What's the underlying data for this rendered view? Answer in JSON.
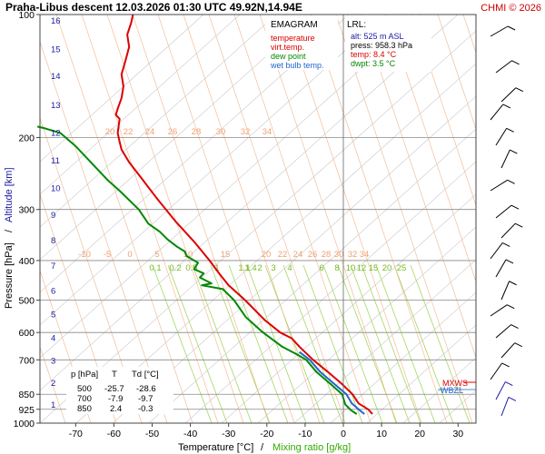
{
  "header": {
    "title": "Praha-Libus   descent   12.03.2026 01:30 UTC  49.92N,14.94E",
    "copyright": "CHMI © 2026"
  },
  "legend": {
    "title": "EMAGRAM",
    "items": [
      {
        "label": "temperature",
        "color": "#dd0000"
      },
      {
        "label": "virt.temp.",
        "color": "#dd0000"
      },
      {
        "label": "dew point",
        "color": "#008800"
      },
      {
        "label": "wet bulb temp.",
        "color": "#2266cc"
      }
    ]
  },
  "lrl": {
    "title": "LRL:",
    "alt": "alt: 525 m ASL",
    "press": "press: 958.3 hPa",
    "temp": "temp: 8.4 °C",
    "dwpt": "dwpt: 3.5 °C"
  },
  "summary_table": {
    "headers": [
      "p [hPa]",
      "T",
      "Td [°C]"
    ],
    "rows": [
      [
        "500",
        "-25.7",
        "-28.6"
      ],
      [
        "700",
        "-7.9",
        "-9.7"
      ],
      [
        "850",
        "2.4",
        "-0.3"
      ]
    ]
  },
  "markers": {
    "mxws": {
      "label": "MXWS",
      "color": "#dd0000"
    },
    "wbzl": {
      "label": "WBZL",
      "color": "#2266cc"
    }
  },
  "chart_data": {
    "type": "line",
    "title": "Praha-Libus   descent   12.03.2026 01:30 UTC  49.92N,14.94E",
    "xlabel": "Temperature [°C]",
    "xlabel2": "Mixing ratio [g/kg]",
    "ylabel": "Pressure [hPa]",
    "ylabel2": "Altitude [km]",
    "xlim": [
      -80,
      40
    ],
    "ylim": [
      1000,
      100
    ],
    "y_scale": "log",
    "x_ticks": [
      -70,
      -60,
      -50,
      -40,
      -30,
      -20,
      -10,
      0,
      10,
      20,
      30
    ],
    "pressure_ticks": [
      100,
      200,
      300,
      400,
      500,
      600,
      700,
      850,
      925,
      1000
    ],
    "altitude_ticks": [
      {
        "km": 16,
        "p": 103
      },
      {
        "km": 15,
        "p": 121
      },
      {
        "km": 14,
        "p": 141
      },
      {
        "km": 13,
        "p": 166
      },
      {
        "km": 12,
        "p": 194
      },
      {
        "km": 11,
        "p": 227
      },
      {
        "km": 10,
        "p": 265
      },
      {
        "km": 9,
        "p": 308
      },
      {
        "km": 8,
        "p": 356
      },
      {
        "km": 7,
        "p": 411
      },
      {
        "km": 6,
        "p": 472
      },
      {
        "km": 5,
        "p": 540
      },
      {
        "km": 4,
        "p": 616
      },
      {
        "km": 3,
        "p": 701
      },
      {
        "km": 2,
        "p": 795
      },
      {
        "km": 1,
        "p": 899
      }
    ],
    "grid": true,
    "series": [
      {
        "name": "temperature",
        "color": "#dd0000",
        "points": [
          [
            7.6,
            950
          ],
          [
            6.5,
            925
          ],
          [
            4.0,
            895
          ],
          [
            2.4,
            850
          ],
          [
            -0.5,
            800
          ],
          [
            -4.0,
            750
          ],
          [
            -7.9,
            700
          ],
          [
            -11.5,
            650
          ],
          [
            -13.5,
            620
          ],
          [
            -16.5,
            600
          ],
          [
            -20.5,
            560
          ],
          [
            -25.7,
            500
          ],
          [
            -30.0,
            460
          ],
          [
            -32.5,
            430
          ],
          [
            -35.0,
            400
          ],
          [
            -39.0,
            360
          ],
          [
            -44.0,
            320
          ],
          [
            -49.0,
            280
          ],
          [
            -53.0,
            250
          ],
          [
            -56.0,
            230
          ],
          [
            -58.0,
            214
          ],
          [
            -58.5,
            205
          ],
          [
            -59.0,
            195
          ],
          [
            -58.5,
            180
          ],
          [
            -59.5,
            176
          ],
          [
            -59.0,
            170
          ],
          [
            -58.0,
            160
          ],
          [
            -57.5,
            150
          ],
          [
            -58.0,
            140
          ],
          [
            -57.0,
            130
          ],
          [
            -56.0,
            120
          ],
          [
            -56.5,
            112
          ],
          [
            -55.5,
            105
          ],
          [
            -55.0,
            100
          ]
        ]
      },
      {
        "name": "dew point",
        "color": "#008800",
        "points": [
          [
            3.5,
            950
          ],
          [
            2.0,
            930
          ],
          [
            0.5,
            900
          ],
          [
            -0.3,
            850
          ],
          [
            -3.5,
            800
          ],
          [
            -7.0,
            750
          ],
          [
            -9.7,
            700
          ],
          [
            -12.0,
            680
          ],
          [
            -16.0,
            650
          ],
          [
            -21.0,
            600
          ],
          [
            -25.5,
            550
          ],
          [
            -28.6,
            500
          ],
          [
            -31.5,
            470
          ],
          [
            -37.0,
            460
          ],
          [
            -34.5,
            455
          ],
          [
            -37.5,
            440
          ],
          [
            -36.5,
            430
          ],
          [
            -39.0,
            420
          ],
          [
            -38.0,
            405
          ],
          [
            -41.0,
            390
          ],
          [
            -41.5,
            380
          ],
          [
            -43.5,
            370
          ],
          [
            -46.0,
            355
          ],
          [
            -48.0,
            340
          ],
          [
            -51.0,
            325
          ],
          [
            -53.5,
            300
          ],
          [
            -58.5,
            270
          ],
          [
            -61.5,
            255
          ],
          [
            -66.0,
            230
          ],
          [
            -70.0,
            210
          ],
          [
            -74.0,
            195
          ],
          [
            -78.0,
            190
          ],
          [
            -80.0,
            188
          ]
        ]
      },
      {
        "name": "wet bulb temp.",
        "color": "#2266cc",
        "points": [
          [
            5.5,
            950
          ],
          [
            4.0,
            925
          ],
          [
            2.2,
            895
          ],
          [
            0.8,
            850
          ],
          [
            -2.5,
            800
          ],
          [
            -6.0,
            750
          ],
          [
            -8.8,
            700
          ],
          [
            -11.5,
            670
          ]
        ]
      }
    ],
    "mixing_ratio_labels": [
      "0.1",
      "0.2",
      "0.5",
      "1",
      "1.1",
      "1.4",
      "2",
      "3",
      "4",
      "6",
      "8",
      "10",
      "12",
      "15",
      "20",
      "25"
    ],
    "dry_adiabat_labels": [
      "-10",
      "-5",
      "0",
      "5",
      "10",
      "15",
      "20",
      "22",
      "24",
      "26",
      "28",
      "30",
      "32",
      "34"
    ]
  }
}
